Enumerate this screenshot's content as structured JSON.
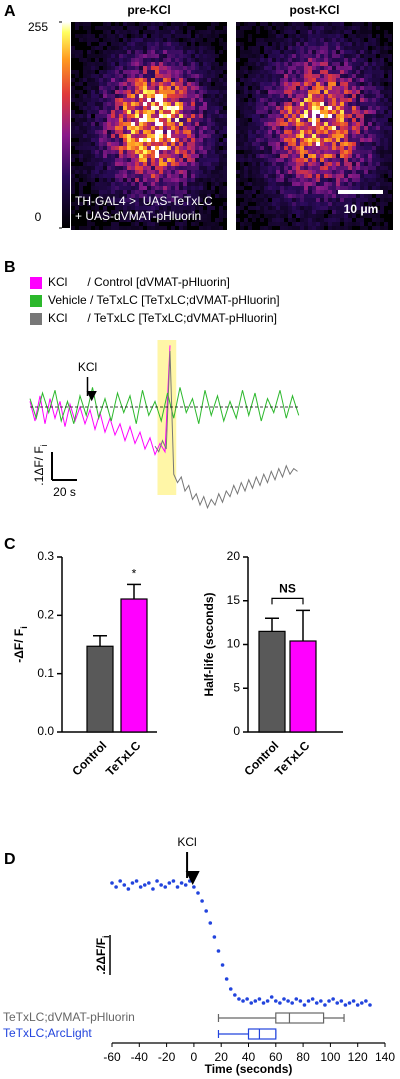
{
  "chart_data": [
    {
      "type": "image",
      "panel": "A",
      "colorbar_lim": [
        0,
        255
      ],
      "colorbar_ticks": [
        0,
        255
      ],
      "images": [
        {
          "title": "pre-KCl"
        },
        {
          "title": "post-KCl"
        }
      ],
      "annotation": [
        "TH-GAL4 >  UAS-TeTxLC",
        "+ UAS-dVMAT-pHluorin"
      ],
      "scalebar_label": "10 μm"
    },
    {
      "type": "line",
      "panel": "B",
      "series": [
        {
          "name": "KCl      / Control [dVMAT-pHluorin]",
          "color": "#ff00ff",
          "x": [
            0,
            4,
            8,
            12,
            16,
            20,
            24,
            28,
            32,
            36,
            40,
            44,
            48,
            52,
            56,
            60,
            64,
            68,
            72,
            76,
            80,
            84,
            88,
            92,
            96,
            100,
            104,
            108,
            112
          ],
          "values": [
            0.02,
            -0.05,
            0.04,
            -0.06,
            0.03,
            -0.04,
            0.02,
            -0.07,
            0.01,
            -0.05,
            0.0,
            -0.06,
            -0.01,
            -0.08,
            -0.02,
            -0.09,
            -0.04,
            -0.1,
            -0.06,
            -0.12,
            -0.07,
            -0.13,
            -0.09,
            -0.15,
            -0.11,
            -0.17,
            -0.13,
            -0.16,
            0.22
          ]
        },
        {
          "name": "Vehicle / TeTxLC [TeTxLC;dVMAT-pHluorin]",
          "color": "#2cb82c",
          "x": [
            0,
            5,
            10,
            15,
            20,
            25,
            30,
            35,
            40,
            45,
            50,
            55,
            60,
            65,
            70,
            75,
            80,
            85,
            90,
            95,
            100,
            105,
            110,
            115,
            120,
            125,
            130,
            135,
            140,
            145,
            150,
            155,
            160,
            165,
            170,
            175,
            180,
            185,
            190,
            195,
            200,
            205,
            210,
            215
          ],
          "values": [
            0.03,
            -0.04,
            0.05,
            -0.02,
            0.06,
            -0.05,
            0.02,
            -0.06,
            0.04,
            -0.03,
            0.07,
            -0.04,
            0.03,
            -0.05,
            0.05,
            -0.02,
            0.04,
            -0.06,
            0.06,
            -0.03,
            0.02,
            -0.05,
            0.05,
            -0.04,
            0.07,
            -0.02,
            0.03,
            -0.06,
            0.06,
            -0.03,
            0.04,
            -0.05,
            0.02,
            -0.04,
            0.06,
            -0.03,
            0.05,
            -0.05,
            0.03,
            -0.02,
            0.06,
            -0.04,
            0.04,
            -0.03
          ]
        },
        {
          "name": "KCl      / TeTxLC [TeTxLC;dVMAT-pHluorin]",
          "color": "#777777",
          "x": [
            100,
            103,
            106,
            109,
            112,
            115,
            118,
            121,
            124,
            127,
            130,
            133,
            136,
            139,
            142,
            145,
            148,
            151,
            154,
            157,
            160,
            163,
            166,
            169,
            172,
            175,
            178,
            181,
            184,
            187,
            190,
            193,
            196,
            199,
            202,
            205,
            208,
            211,
            214
          ],
          "values": [
            -0.14,
            -0.16,
            -0.12,
            -0.15,
            0.2,
            -0.24,
            -0.27,
            -0.25,
            -0.3,
            -0.28,
            -0.33,
            -0.31,
            -0.35,
            -0.32,
            -0.36,
            -0.33,
            -0.35,
            -0.31,
            -0.34,
            -0.3,
            -0.32,
            -0.28,
            -0.31,
            -0.27,
            -0.3,
            -0.26,
            -0.29,
            -0.25,
            -0.28,
            -0.24,
            -0.27,
            -0.23,
            -0.26,
            -0.22,
            -0.25,
            -0.21,
            -0.24,
            -0.22,
            -0.23
          ]
        }
      ],
      "baseline": 0,
      "highlight": [
        102,
        117
      ],
      "annotation": {
        "text": "KCl",
        "x": 46
      },
      "scalebar": {
        "x": 20,
        "x_label": "20 s",
        "y": 0.1,
        "y_label": ".1ΔF/ F",
        "y_label_sub": "i"
      }
    },
    {
      "type": "bar",
      "panel": "C",
      "categories": [
        "Control",
        "TeTxLC"
      ],
      "values": [
        0.147,
        0.228
      ],
      "errors": [
        0.018,
        0.025
      ],
      "colors": [
        "#595959",
        "#ff00ff"
      ],
      "ylabel": "-ΔF/ F",
      "ylabel_sub": "i",
      "ylim": [
        0,
        0.3
      ],
      "yticks": [
        {
          "value": 0,
          "label": "0.0"
        },
        {
          "value": 0.1,
          "label": "0.1"
        },
        {
          "value": 0.2,
          "label": "0.2"
        },
        {
          "value": 0.3,
          "label": "0.3"
        }
      ],
      "annotation": {
        "text": "*",
        "bracket": false
      }
    },
    {
      "type": "bar",
      "categories": [
        "Control",
        "TeTxLC"
      ],
      "values": [
        11.5,
        10.4
      ],
      "errors": [
        1.5,
        3.5
      ],
      "colors": [
        "#595959",
        "#ff00ff"
      ],
      "ylabel": "Half-life (seconds)",
      "ylim": [
        0,
        20
      ],
      "yticks": [
        0,
        5,
        10,
        15,
        20
      ],
      "annotation": {
        "text": "NS",
        "bracket": true
      }
    },
    {
      "type": "scatter",
      "panel": "D",
      "color": "#2244dd",
      "x": [
        -60,
        -57,
        -54,
        -51,
        -48,
        -45,
        -42,
        -39,
        -36,
        -33,
        -30,
        -27,
        -24,
        -21,
        -18,
        -15,
        -12,
        -9,
        -6,
        -3,
        0,
        3,
        6,
        9,
        12,
        15,
        18,
        21,
        24,
        27,
        30,
        33,
        36,
        39,
        42,
        45,
        48,
        51,
        54,
        57,
        60,
        63,
        66,
        69,
        72,
        75,
        78,
        81,
        84,
        87,
        90,
        93,
        96,
        99,
        102,
        105,
        108,
        111,
        114,
        117,
        120,
        123,
        126,
        129
      ],
      "values": [
        0.01,
        -0.01,
        0.02,
        0,
        -0.02,
        0.01,
        0.02,
        -0.01,
        0,
        0.01,
        -0.02,
        0.02,
        0,
        -0.01,
        0.01,
        0.02,
        -0.01,
        0.01,
        0,
        0.02,
        -0.01,
        -0.04,
        -0.08,
        -0.13,
        -0.19,
        -0.26,
        -0.33,
        -0.4,
        -0.47,
        -0.52,
        -0.55,
        -0.57,
        -0.58,
        -0.57,
        -0.59,
        -0.58,
        -0.57,
        -0.59,
        -0.58,
        -0.56,
        -0.58,
        -0.59,
        -0.57,
        -0.58,
        -0.59,
        -0.57,
        -0.58,
        -0.6,
        -0.58,
        -0.57,
        -0.59,
        -0.58,
        -0.6,
        -0.58,
        -0.57,
        -0.59,
        -0.58,
        -0.6,
        -0.59,
        -0.58,
        -0.6,
        -0.59,
        -0.58,
        -0.6
      ],
      "xlim": [
        -60,
        140
      ],
      "xticks": [
        -60,
        -40,
        -20,
        0,
        20,
        40,
        60,
        80,
        100,
        120,
        140
      ],
      "xlabel": "Time (seconds)",
      "annotation": {
        "text": "KCl",
        "x": -5
      },
      "scalebar": {
        "y": 0.2,
        "y_label": ".2ΔF/F",
        "y_label_sub": "i"
      },
      "boxplots": [
        {
          "name": "TeTxLC;dVMAT-pHluorin",
          "color": "#666666",
          "min": 18,
          "q1": 60,
          "median": 70,
          "q3": 95,
          "max": 110
        },
        {
          "name": "TeTxLC;ArcLight",
          "color": "#2244dd",
          "min": 18,
          "q1": 40,
          "median": 48,
          "q3": 60,
          "max": 60
        }
      ]
    }
  ]
}
